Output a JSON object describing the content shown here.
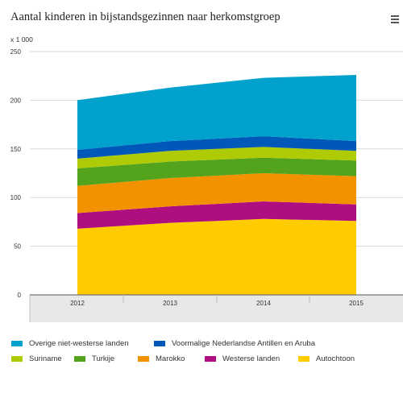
{
  "header": {
    "title": "Aantal kinderen in bijstandsgezinnen naar herkomstgroep",
    "menu_icon": "hamburger-menu-icon"
  },
  "chart_data": {
    "type": "area",
    "stacked": true,
    "unit_label": "x 1 000",
    "categories": [
      "2012",
      "2013",
      "2014",
      "2015"
    ],
    "y_ticks": [
      0,
      50,
      100,
      150,
      200,
      250
    ],
    "ylim": [
      0,
      250
    ],
    "grid": true,
    "legend_position": "bottom",
    "series": [
      {
        "name": "Autochtoon",
        "color": "#ffcc00",
        "values": [
          68,
          74,
          78,
          76
        ]
      },
      {
        "name": "Westerse landen",
        "color": "#af0e80",
        "values": [
          16,
          17,
          18,
          17
        ]
      },
      {
        "name": "Marokko",
        "color": "#f39200",
        "values": [
          28,
          29,
          29,
          29
        ]
      },
      {
        "name": "Turkije",
        "color": "#53a31d",
        "values": [
          18,
          17,
          16,
          16
        ]
      },
      {
        "name": "Suriname",
        "color": "#afcb05",
        "values": [
          10,
          11,
          11,
          10
        ]
      },
      {
        "name": "Voormalige Nederlandse Antillen en Aruba",
        "color": "#0058b8",
        "values": [
          9,
          10,
          11,
          10
        ]
      },
      {
        "name": "Overige niet-westerse landen",
        "color": "#00a1cd",
        "values": [
          51,
          55,
          60,
          68
        ]
      }
    ]
  }
}
